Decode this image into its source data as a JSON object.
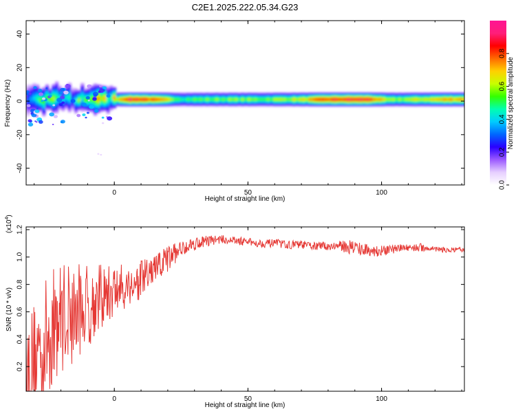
{
  "title": "C2E1.2025.222.05.34.G23",
  "colors": {
    "snr_line": "#e53935",
    "axis": "#000000",
    "colormap": [
      "#ffffff",
      "#e6cfff",
      "#9b59ff",
      "#2a00ff",
      "#0066ff",
      "#00ccff",
      "#00ffb0",
      "#33ff00",
      "#c8ff00",
      "#ffd000",
      "#ff6a00",
      "#ff0000",
      "#ff1e7a",
      "#ff1493"
    ]
  },
  "chart_data": [
    {
      "type": "heatmap",
      "xlabel": "Height of straight line (km)",
      "ylabel": "Frequency (Hz)",
      "xlim": [
        -33,
        131
      ],
      "ylim": [
        -50,
        48
      ],
      "xticks": [
        0,
        50,
        100
      ],
      "yticks": [
        40,
        20,
        0,
        -20,
        -40
      ],
      "colorbar": {
        "label": "Normalized spectral amplitude",
        "range": [
          0,
          1
        ],
        "ticks": [
          "0.0",
          "0.2",
          "0.4",
          "0.6",
          "0.8"
        ]
      },
      "band_center_hz": 1,
      "approx_amplitude_profile": [
        {
          "x": -33,
          "amp": 0.45
        },
        {
          "x": -25,
          "amp": 0.5
        },
        {
          "x": -15,
          "amp": 0.45
        },
        {
          "x": -8,
          "amp": 0.7
        },
        {
          "x": -2,
          "amp": 0.55
        },
        {
          "x": 4,
          "amp": 0.95
        },
        {
          "x": 10,
          "amp": 0.95
        },
        {
          "x": 18,
          "amp": 0.75
        },
        {
          "x": 25,
          "amp": 0.55
        },
        {
          "x": 40,
          "amp": 0.6
        },
        {
          "x": 55,
          "amp": 0.6
        },
        {
          "x": 70,
          "amp": 0.7
        },
        {
          "x": 78,
          "amp": 0.9
        },
        {
          "x": 88,
          "amp": 0.95
        },
        {
          "x": 95,
          "amp": 0.95
        },
        {
          "x": 102,
          "amp": 0.6
        },
        {
          "x": 115,
          "amp": 0.7
        },
        {
          "x": 125,
          "amp": 0.8
        },
        {
          "x": 131,
          "amp": 0.8
        }
      ]
    },
    {
      "type": "line",
      "xlabel": "Height of straight line (km)",
      "ylabel": "SNR (10 * v/v)",
      "y_multiplier": "(x10",
      "y_multiplier_exponent": "4",
      "y_multiplier_close": ")",
      "xlim": [
        -33,
        131
      ],
      "ylim": [
        0.02,
        1.22
      ],
      "xticks": [
        0,
        50,
        100
      ],
      "yticks": [
        "0.2",
        "0.4",
        "0.6",
        "0.8",
        "1.0",
        "1.2"
      ],
      "series": [
        {
          "x": [
            -33,
            -30,
            -27,
            -24,
            -21,
            -18,
            -15,
            -12,
            -9,
            -6,
            -3,
            0,
            3,
            6,
            9,
            12,
            15,
            18,
            21,
            24,
            27,
            30,
            35,
            40,
            45,
            50,
            55,
            60,
            65,
            70,
            75,
            80,
            85,
            90,
            95,
            100,
            105,
            110,
            115,
            120,
            125,
            131
          ],
          "y": [
            0.18,
            0.28,
            0.35,
            0.45,
            0.55,
            0.6,
            0.58,
            0.62,
            0.65,
            0.7,
            0.72,
            0.75,
            0.78,
            0.8,
            0.82,
            0.86,
            0.9,
            0.95,
            1.0,
            1.05,
            1.08,
            1.1,
            1.12,
            1.13,
            1.12,
            1.11,
            1.1,
            1.1,
            1.09,
            1.09,
            1.08,
            1.08,
            1.08,
            1.07,
            1.05,
            1.04,
            1.06,
            1.07,
            1.07,
            1.06,
            1.05,
            1.05
          ],
          "noise_envelope": [
            0.35,
            0.4,
            0.45,
            0.45,
            0.42,
            0.4,
            0.38,
            0.3,
            0.3,
            0.25,
            0.22,
            0.2,
            0.18,
            0.16,
            0.15,
            0.14,
            0.12,
            0.12,
            0.1,
            0.06,
            0.05,
            0.05,
            0.04,
            0.03,
            0.03,
            0.03,
            0.03,
            0.03,
            0.03,
            0.03,
            0.03,
            0.03,
            0.04,
            0.06,
            0.04,
            0.04,
            0.03,
            0.03,
            0.03,
            0.02,
            0.02,
            0.02
          ]
        }
      ]
    }
  ]
}
